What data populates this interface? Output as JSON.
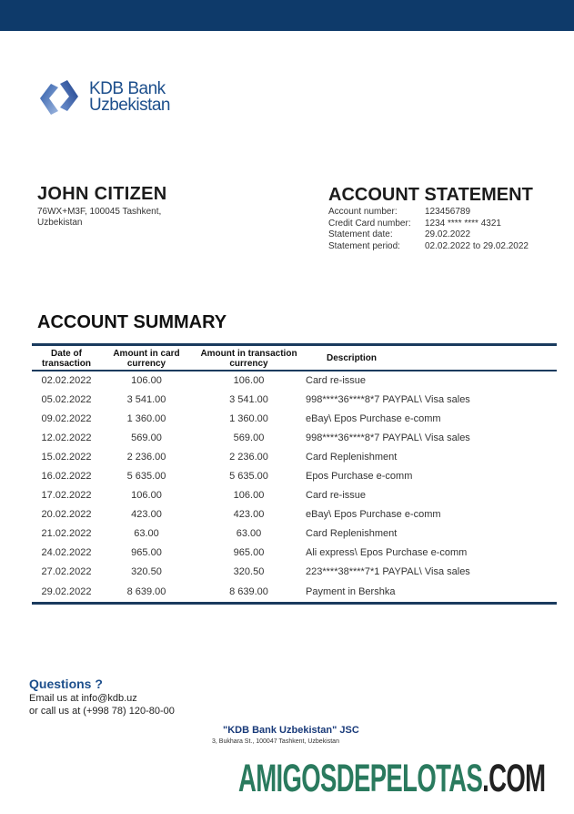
{
  "brand": {
    "color": "#0e3a6a",
    "logo_line1": "KDB Bank",
    "logo_line2": "Uzbekistan"
  },
  "customer": {
    "name": "JOHN CITIZEN",
    "address_line1": "76WX+M3F, 100045 Tashkent,",
    "address_line2": "Uzbekistan"
  },
  "statement": {
    "title": "ACCOUNT STATEMENT",
    "fields": [
      {
        "label": "Account number:",
        "value": "123456789"
      },
      {
        "label": "Credit Card number:",
        "value": "1234 **** **** 4321"
      },
      {
        "label": "Statement date:",
        "value": "29.02.2022"
      },
      {
        "label": "Statement period:",
        "value": "02.02.2022 to 29.02.2022"
      }
    ]
  },
  "summary": {
    "title": "ACCOUNT SUMMARY",
    "columns": [
      "Date of transaction",
      "Amount in card currency",
      "Amount in transaction currency",
      "Description"
    ],
    "rows": [
      [
        "02.02.2022",
        "106.00",
        "106.00",
        "Card re-issue"
      ],
      [
        "05.02.2022",
        "3 541.00",
        "3 541.00",
        "998****36****8*7 PAYPAL\\ Visa sales"
      ],
      [
        "09.02.2022",
        "1 360.00",
        "1 360.00",
        "eBay\\ Epos Purchase e-comm"
      ],
      [
        "12.02.2022",
        "569.00",
        "569.00",
        "998****36****8*7 PAYPAL\\ Visa sales"
      ],
      [
        "15.02.2022",
        "2 236.00",
        "2 236.00",
        "Card Replenishment"
      ],
      [
        "16.02.2022",
        "5 635.00",
        "5 635.00",
        "Epos Purchase e-comm"
      ],
      [
        "17.02.2022",
        "106.00",
        "106.00",
        "Card re-issue"
      ],
      [
        "20.02.2022",
        "423.00",
        "423.00",
        "eBay\\ Epos Purchase e-comm"
      ],
      [
        "21.02.2022",
        "63.00",
        "63.00",
        "Card Replenishment"
      ],
      [
        "24.02.2022",
        "965.00",
        "965.00",
        "Ali express\\ Epos Purchase e-comm"
      ],
      [
        "27.02.2022",
        "320.50",
        "320.50",
        "223****38****7*1 PAYPAL\\ Visa sales"
      ],
      [
        "29.02.2022",
        "8 639.00",
        "8 639.00",
        "Payment in Bershka"
      ]
    ]
  },
  "contact": {
    "title": "Questions ?",
    "email_line": "Email us at info@kdb.uz",
    "phone_line": "or call us at (+998 78) 120-80-00"
  },
  "footer": {
    "company": "\"KDB Bank Uzbekistan\" JSC",
    "address": "3, Bukhara St., 100047 Tashkent, Uzbekistan"
  },
  "watermark": {
    "main": "AMIGOSDEPELOTAS",
    "suffix": ".COM"
  }
}
